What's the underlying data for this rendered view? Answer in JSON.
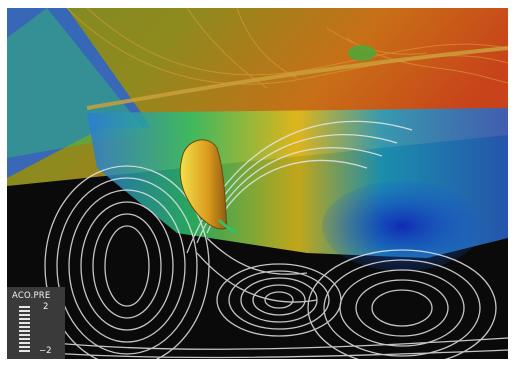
{
  "legend": {
    "title": "ACO.PRE",
    "max_label": "2",
    "min_label": "−2"
  },
  "colors": {
    "upper_warm": "#d46a14",
    "upper_green": "#6f8f22",
    "cool_blue": "#1530d8",
    "contour_white": "#e6e6e6",
    "background_black": "#0a0a0a"
  }
}
